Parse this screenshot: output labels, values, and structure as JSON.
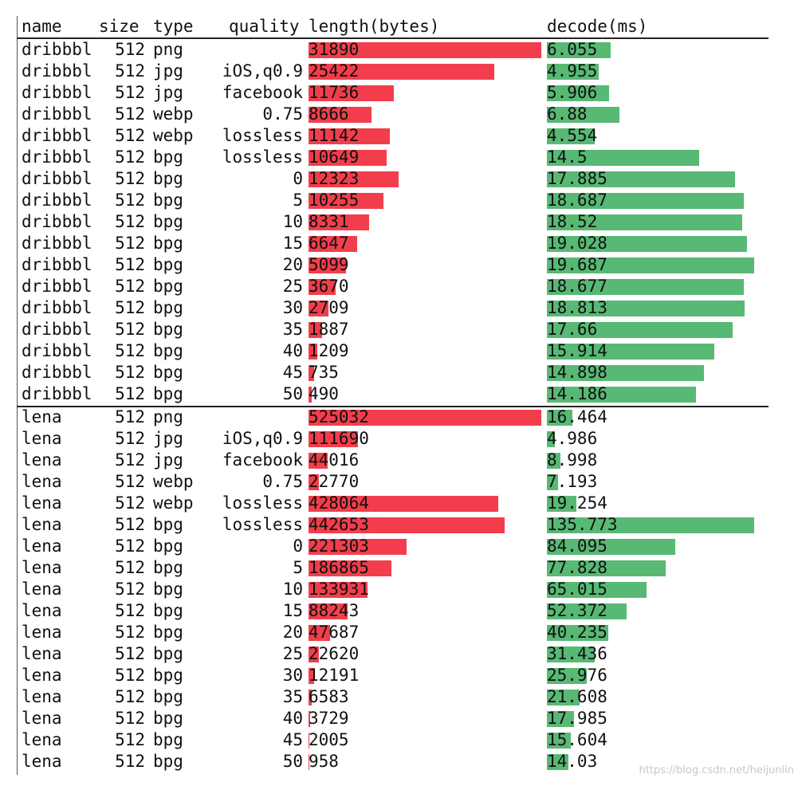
{
  "chart_data": {
    "type": "table",
    "columns": [
      "name",
      "size",
      "type",
      "quality",
      "length(bytes)",
      "decode(ms)"
    ],
    "groups": [
      {
        "rows": [
          {
            "name": "dribbbl",
            "size": "512",
            "type": "png",
            "quality": "",
            "length": 31890,
            "decode": 6.055
          },
          {
            "name": "dribbbl",
            "size": "512",
            "type": "jpg",
            "quality": "iOS,q0.9",
            "length": 25422,
            "decode": 4.955
          },
          {
            "name": "dribbbl",
            "size": "512",
            "type": "jpg",
            "quality": "facebook",
            "length": 11736,
            "decode": 5.906
          },
          {
            "name": "dribbbl",
            "size": "512",
            "type": "webp",
            "quality": "0.75",
            "length": 8666,
            "decode": 6.88
          },
          {
            "name": "dribbbl",
            "size": "512",
            "type": "webp",
            "quality": "lossless",
            "length": 11142,
            "decode": 4.554
          },
          {
            "name": "dribbbl",
            "size": "512",
            "type": "bpg",
            "quality": "lossless",
            "length": 10649,
            "decode": 14.5
          },
          {
            "name": "dribbbl",
            "size": "512",
            "type": "bpg",
            "quality": "0",
            "length": 12323,
            "decode": 17.885
          },
          {
            "name": "dribbbl",
            "size": "512",
            "type": "bpg",
            "quality": "5",
            "length": 10255,
            "decode": 18.687
          },
          {
            "name": "dribbbl",
            "size": "512",
            "type": "bpg",
            "quality": "10",
            "length": 8331,
            "decode": 18.52
          },
          {
            "name": "dribbbl",
            "size": "512",
            "type": "bpg",
            "quality": "15",
            "length": 6647,
            "decode": 19.028
          },
          {
            "name": "dribbbl",
            "size": "512",
            "type": "bpg",
            "quality": "20",
            "length": 5099,
            "decode": 19.687
          },
          {
            "name": "dribbbl",
            "size": "512",
            "type": "bpg",
            "quality": "25",
            "length": 3670,
            "decode": 18.677
          },
          {
            "name": "dribbbl",
            "size": "512",
            "type": "bpg",
            "quality": "30",
            "length": 2709,
            "decode": 18.813
          },
          {
            "name": "dribbbl",
            "size": "512",
            "type": "bpg",
            "quality": "35",
            "length": 1887,
            "decode": 17.66
          },
          {
            "name": "dribbbl",
            "size": "512",
            "type": "bpg",
            "quality": "40",
            "length": 1209,
            "decode": 15.914
          },
          {
            "name": "dribbbl",
            "size": "512",
            "type": "bpg",
            "quality": "45",
            "length": 735,
            "decode": 14.898
          },
          {
            "name": "dribbbl",
            "size": "512",
            "type": "bpg",
            "quality": "50",
            "length": 490,
            "decode": 14.186
          }
        ]
      },
      {
        "rows": [
          {
            "name": "lena",
            "size": "512",
            "type": "png",
            "quality": "",
            "length": 525032,
            "decode": 16.464
          },
          {
            "name": "lena",
            "size": "512",
            "type": "jpg",
            "quality": "iOS,q0.9",
            "length": 111690,
            "decode": 4.986
          },
          {
            "name": "lena",
            "size": "512",
            "type": "jpg",
            "quality": "facebook",
            "length": 44016,
            "decode": 8.998
          },
          {
            "name": "lena",
            "size": "512",
            "type": "webp",
            "quality": "0.75",
            "length": 22770,
            "decode": 7.193
          },
          {
            "name": "lena",
            "size": "512",
            "type": "webp",
            "quality": "lossless",
            "length": 428064,
            "decode": 19.254
          },
          {
            "name": "lena",
            "size": "512",
            "type": "bpg",
            "quality": "lossless",
            "length": 442653,
            "decode": 135.773
          },
          {
            "name": "lena",
            "size": "512",
            "type": "bpg",
            "quality": "0",
            "length": 221303,
            "decode": 84.095
          },
          {
            "name": "lena",
            "size": "512",
            "type": "bpg",
            "quality": "5",
            "length": 186865,
            "decode": 77.828
          },
          {
            "name": "lena",
            "size": "512",
            "type": "bpg",
            "quality": "10",
            "length": 133931,
            "decode": 65.015
          },
          {
            "name": "lena",
            "size": "512",
            "type": "bpg",
            "quality": "15",
            "length": 88243,
            "decode": 52.372
          },
          {
            "name": "lena",
            "size": "512",
            "type": "bpg",
            "quality": "20",
            "length": 47687,
            "decode": 40.235
          },
          {
            "name": "lena",
            "size": "512",
            "type": "bpg",
            "quality": "25",
            "length": 22620,
            "decode": 31.436
          },
          {
            "name": "lena",
            "size": "512",
            "type": "bpg",
            "quality": "30",
            "length": 12191,
            "decode": 25.976
          },
          {
            "name": "lena",
            "size": "512",
            "type": "bpg",
            "quality": "35",
            "length": 6583,
            "decode": 21.608
          },
          {
            "name": "lena",
            "size": "512",
            "type": "bpg",
            "quality": "40",
            "length": 3729,
            "decode": 17.985
          },
          {
            "name": "lena",
            "size": "512",
            "type": "bpg",
            "quality": "45",
            "length": 2005,
            "decode": 15.604
          },
          {
            "name": "lena",
            "size": "512",
            "type": "bpg",
            "quality": "50",
            "length": 958,
            "decode": 14.03
          }
        ]
      }
    ],
    "bar_colors": {
      "length": "#f23e4c",
      "decode": "#58b974"
    }
  },
  "watermark": "https://blog.csdn.net/heijunlin"
}
